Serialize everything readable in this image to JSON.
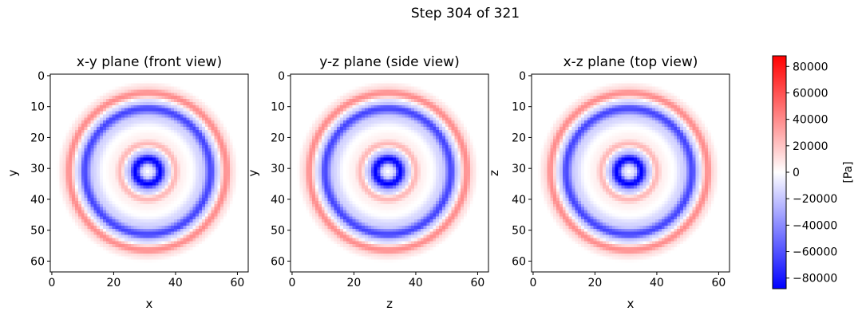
{
  "figure": {
    "suptitle": "Step 304 of 321"
  },
  "colors": {
    "colormap": "bwr",
    "low": "#0000ff",
    "mid": "#ffffff",
    "high": "#ff0000",
    "axes_edge": "#000000"
  },
  "chart_data": [
    {
      "type": "heatmap",
      "title": "x-y plane (front view)",
      "xlabel": "x",
      "ylabel": "y",
      "grid_size": [
        64,
        64
      ],
      "xlim": [
        -0.5,
        63.5
      ],
      "ylim": [
        63.5,
        -0.5
      ],
      "x_ticks": [
        "0",
        "20",
        "40",
        "60"
      ],
      "y_ticks": [
        "0",
        "10",
        "20",
        "30",
        "40",
        "50",
        "60"
      ],
      "field": {
        "pattern": "concentric rings",
        "center": [
          31,
          31
        ],
        "rings": [
          {
            "radius": 0,
            "value": 0
          },
          {
            "radius": 1.5,
            "value": -10000
          },
          {
            "radius": 4.0,
            "value": -88000
          },
          {
            "radius": 6.5,
            "value": -20000
          },
          {
            "radius": 9.0,
            "value": 25000
          },
          {
            "radius": 11.0,
            "value": 5000
          },
          {
            "radius": 14.0,
            "value": 0
          },
          {
            "radius": 17.5,
            "value": -15000
          },
          {
            "radius": 20.5,
            "value": -65000
          },
          {
            "radius": 22.5,
            "value": -15000
          },
          {
            "radius": 25.5,
            "value": 40000
          },
          {
            "radius": 27.5,
            "value": 10000
          },
          {
            "radius": 29.5,
            "value": 0
          }
        ]
      }
    },
    {
      "type": "heatmap",
      "title": "y-z plane (side view)",
      "xlabel": "z",
      "ylabel": "y",
      "grid_size": [
        64,
        64
      ],
      "xlim": [
        -0.5,
        63.5
      ],
      "ylim": [
        63.5,
        -0.5
      ],
      "x_ticks": [
        "0",
        "20",
        "40",
        "60"
      ],
      "y_ticks": [
        "0",
        "10",
        "20",
        "30",
        "40",
        "50",
        "60"
      ],
      "field": {
        "pattern": "concentric rings",
        "center": [
          31,
          31
        ],
        "rings": [
          {
            "radius": 0,
            "value": 0
          },
          {
            "radius": 1.5,
            "value": -10000
          },
          {
            "radius": 4.0,
            "value": -88000
          },
          {
            "radius": 6.5,
            "value": -20000
          },
          {
            "radius": 9.0,
            "value": 25000
          },
          {
            "radius": 11.0,
            "value": 5000
          },
          {
            "radius": 14.0,
            "value": 0
          },
          {
            "radius": 17.5,
            "value": -15000
          },
          {
            "radius": 20.5,
            "value": -65000
          },
          {
            "radius": 22.5,
            "value": -15000
          },
          {
            "radius": 25.5,
            "value": 40000
          },
          {
            "radius": 27.5,
            "value": 10000
          },
          {
            "radius": 29.5,
            "value": 0
          }
        ]
      }
    },
    {
      "type": "heatmap",
      "title": "x-z plane (top view)",
      "xlabel": "x",
      "ylabel": "z",
      "grid_size": [
        64,
        64
      ],
      "xlim": [
        -0.5,
        63.5
      ],
      "ylim": [
        63.5,
        -0.5
      ],
      "x_ticks": [
        "0",
        "20",
        "40",
        "60"
      ],
      "y_ticks": [
        "0",
        "10",
        "20",
        "30",
        "40",
        "50",
        "60"
      ],
      "field": {
        "pattern": "concentric rings",
        "center": [
          31,
          31
        ],
        "rings": [
          {
            "radius": 0,
            "value": 0
          },
          {
            "radius": 1.5,
            "value": -10000
          },
          {
            "radius": 4.0,
            "value": -88000
          },
          {
            "radius": 6.5,
            "value": -20000
          },
          {
            "radius": 9.0,
            "value": 25000
          },
          {
            "radius": 11.0,
            "value": 5000
          },
          {
            "radius": 14.0,
            "value": 0
          },
          {
            "radius": 17.5,
            "value": -15000
          },
          {
            "radius": 20.5,
            "value": -65000
          },
          {
            "radius": 22.5,
            "value": -15000
          },
          {
            "radius": 25.5,
            "value": 40000
          },
          {
            "radius": 27.5,
            "value": 10000
          },
          {
            "radius": 29.5,
            "value": 0
          }
        ]
      }
    }
  ],
  "colorbar": {
    "label": "[Pa]",
    "vmin": -88000,
    "vmax": 88000,
    "ticks": [
      80000,
      60000,
      40000,
      20000,
      0,
      -20000,
      -40000,
      -60000,
      -80000
    ],
    "tick_labels": [
      "80000",
      "60000",
      "40000",
      "20000",
      "0",
      "−20000",
      "−40000",
      "−60000",
      "−80000"
    ]
  }
}
